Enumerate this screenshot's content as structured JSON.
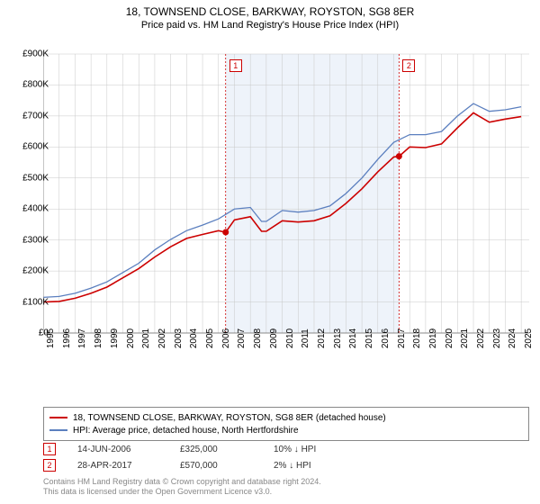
{
  "title": "18, TOWNSEND CLOSE, BARKWAY, ROYSTON, SG8 8ER",
  "subtitle": "Price paid vs. HM Land Registry's House Price Index (HPI)",
  "chart": {
    "type": "line",
    "background_color": "#ffffff",
    "grid_color": "#c8c8c8",
    "shaded_region": {
      "x_start": 2006.45,
      "x_end": 2017.33,
      "fill": "#eef3fa"
    },
    "ylim": [
      0,
      900000
    ],
    "ytick_step": 100000,
    "y_ticks": [
      "£0",
      "£100K",
      "£200K",
      "£300K",
      "£400K",
      "£500K",
      "£600K",
      "£700K",
      "£800K",
      "£900K"
    ],
    "x_ticks": [
      1995,
      1996,
      1997,
      1998,
      1999,
      2000,
      2001,
      2002,
      2003,
      2004,
      2005,
      2006,
      2007,
      2008,
      2009,
      2010,
      2011,
      2012,
      2013,
      2014,
      2015,
      2016,
      2017,
      2018,
      2019,
      2020,
      2021,
      2022,
      2023,
      2024,
      2025
    ],
    "xlim": [
      1995,
      2025.5
    ],
    "series": [
      {
        "name": "HPI: Average price, detached house, North Hertfordshire",
        "color": "#5b7fbf",
        "line_width": 1.3,
        "data": [
          [
            1995,
            115000
          ],
          [
            1996,
            118000
          ],
          [
            1997,
            128000
          ],
          [
            1998,
            145000
          ],
          [
            1999,
            165000
          ],
          [
            2000,
            195000
          ],
          [
            2001,
            225000
          ],
          [
            2002,
            268000
          ],
          [
            2003,
            302000
          ],
          [
            2004,
            330000
          ],
          [
            2005,
            348000
          ],
          [
            2006,
            368000
          ],
          [
            2007,
            400000
          ],
          [
            2008,
            405000
          ],
          [
            2008.7,
            360000
          ],
          [
            2009,
            360000
          ],
          [
            2010,
            395000
          ],
          [
            2011,
            390000
          ],
          [
            2012,
            395000
          ],
          [
            2013,
            410000
          ],
          [
            2014,
            450000
          ],
          [
            2015,
            500000
          ],
          [
            2016,
            560000
          ],
          [
            2017,
            615000
          ],
          [
            2018,
            640000
          ],
          [
            2019,
            640000
          ],
          [
            2020,
            650000
          ],
          [
            2021,
            700000
          ],
          [
            2022,
            740000
          ],
          [
            2023,
            715000
          ],
          [
            2024,
            720000
          ],
          [
            2025,
            730000
          ]
        ]
      },
      {
        "name": "18, TOWNSEND CLOSE, BARKWAY, ROYSTON, SG8 8ER (detached house)",
        "color": "#cc0000",
        "line_width": 1.6,
        "data": [
          [
            1995,
            100000
          ],
          [
            1996,
            102000
          ],
          [
            1997,
            112000
          ],
          [
            1998,
            128000
          ],
          [
            1999,
            148000
          ],
          [
            2000,
            178000
          ],
          [
            2001,
            208000
          ],
          [
            2002,
            245000
          ],
          [
            2003,
            278000
          ],
          [
            2004,
            305000
          ],
          [
            2005,
            318000
          ],
          [
            2006,
            330000
          ],
          [
            2006.45,
            325000
          ],
          [
            2007,
            365000
          ],
          [
            2008,
            375000
          ],
          [
            2008.7,
            328000
          ],
          [
            2009,
            328000
          ],
          [
            2010,
            362000
          ],
          [
            2011,
            358000
          ],
          [
            2012,
            362000
          ],
          [
            2013,
            378000
          ],
          [
            2014,
            418000
          ],
          [
            2015,
            465000
          ],
          [
            2016,
            520000
          ],
          [
            2017,
            568000
          ],
          [
            2017.33,
            570000
          ],
          [
            2018,
            600000
          ],
          [
            2019,
            598000
          ],
          [
            2020,
            610000
          ],
          [
            2021,
            662000
          ],
          [
            2022,
            710000
          ],
          [
            2023,
            680000
          ],
          [
            2024,
            690000
          ],
          [
            2025,
            698000
          ]
        ]
      }
    ],
    "markers": [
      {
        "id": "1",
        "x": 2006.45,
        "y": 325000,
        "color": "#cc0000",
        "line_color": "#cc0000",
        "line_dash": "2,2"
      },
      {
        "id": "2",
        "x": 2017.33,
        "y": 570000,
        "color": "#cc0000",
        "line_color": "#cc0000",
        "line_dash": "2,2"
      }
    ],
    "label_fontsize": 10
  },
  "legend": {
    "items": [
      {
        "color": "#cc0000",
        "label": "18, TOWNSEND CLOSE, BARKWAY, ROYSTON, SG8 8ER (detached house)"
      },
      {
        "color": "#5b7fbf",
        "label": "HPI: Average price, detached house, North Hertfordshire"
      }
    ]
  },
  "transactions": [
    {
      "id": "1",
      "border_color": "#cc0000",
      "date": "14-JUN-2006",
      "price": "£325,000",
      "delta": "10% ↓ HPI"
    },
    {
      "id": "2",
      "border_color": "#cc0000",
      "date": "28-APR-2017",
      "price": "£570,000",
      "delta": "2% ↓ HPI"
    }
  ],
  "footer_line1": "Contains HM Land Registry data © Crown copyright and database right 2024.",
  "footer_line2": "This data is licensed under the Open Government Licence v3.0."
}
